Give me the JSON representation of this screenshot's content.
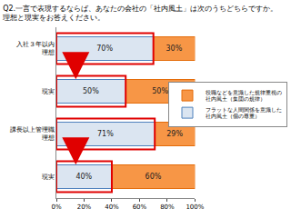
{
  "chart_data": {
    "type": "bar",
    "orientation": "horizontal",
    "stacked": true,
    "title": "Q2.一言で表現するならば、あなたの会社の「社内風土」は次のうちどちらですか。\n理想と現実をお答えください。",
    "categories": [
      "入社３年以内\n理想",
      "現実",
      "課長以上管理職\n理想",
      "現実"
    ],
    "series": [
      {
        "name": "フラットな人間関係を意識した\n社内風土（個の尊重）",
        "color": "#dbe5f1",
        "values": [
          70,
          50,
          71,
          40
        ],
        "value_labels": [
          "70%",
          "50%",
          "71%",
          "40%"
        ]
      },
      {
        "name": "役職などを意識した規律重視の\n社内風土（集団の規律）",
        "color": "#f79646",
        "values": [
          30,
          50,
          29,
          60
        ],
        "value_labels": [
          "30%",
          "50%",
          "29%",
          "60%"
        ]
      }
    ],
    "xlim": [
      0,
      100
    ],
    "xticks": [
      {
        "value": 0,
        "label": "0%"
      },
      {
        "value": 20,
        "label": "20%"
      },
      {
        "value": 40,
        "label": "40%"
      },
      {
        "value": 60,
        "label": "60%"
      },
      {
        "value": 80,
        "label": "80%"
      },
      {
        "value": 100,
        "label": "100%"
      }
    ],
    "data_labels": true,
    "grid": false,
    "legend": "right"
  }
}
